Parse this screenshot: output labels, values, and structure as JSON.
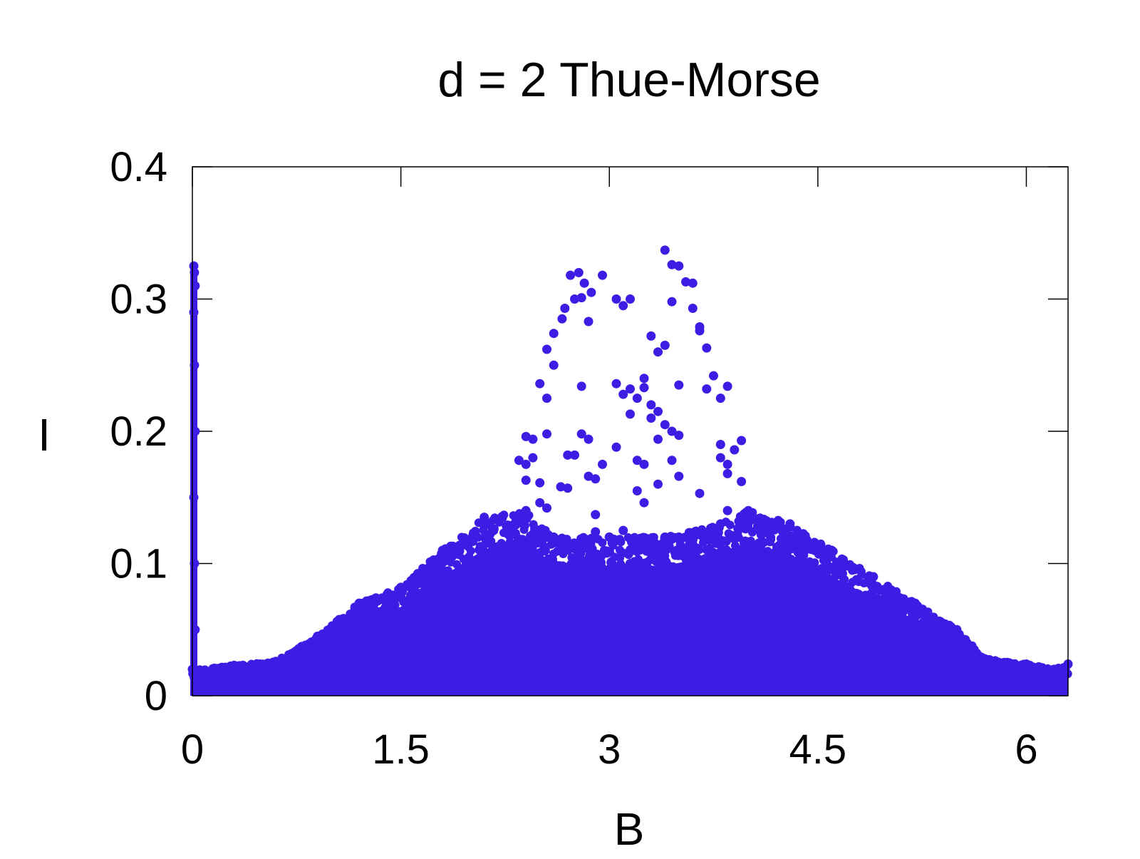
{
  "chart_data": {
    "type": "scatter",
    "title": "d = 2 Thue-Morse",
    "xlabel": "B",
    "ylabel": "I",
    "xlim": [
      0,
      6.3
    ],
    "ylim": [
      0,
      0.4
    ],
    "x_ticks": [
      "0",
      "1.5",
      "3",
      "4.5",
      "6"
    ],
    "x_tick_values": [
      0,
      1.5,
      3,
      4.5,
      6
    ],
    "y_ticks": [
      "0",
      "0.1",
      "0.2",
      "0.3",
      "0.4"
    ],
    "y_tick_values": [
      0,
      0.1,
      0.2,
      0.3,
      0.4
    ],
    "grid": false,
    "legend": "none",
    "marker_color": "#3d1de4",
    "series": [
      {
        "points": [
          [
            0.01,
            0.325
          ],
          [
            0.015,
            0.32
          ],
          [
            0.02,
            0.31
          ],
          [
            0.01,
            0.29
          ],
          [
            0.015,
            0.25
          ],
          [
            0.02,
            0.2
          ],
          [
            0.01,
            0.15
          ],
          [
            0.015,
            0.1
          ],
          [
            0.02,
            0.05
          ],
          [
            0.01,
            0.02
          ],
          [
            2.72,
            0.318
          ],
          [
            2.78,
            0.32
          ],
          [
            2.82,
            0.312
          ],
          [
            2.87,
            0.305
          ],
          [
            2.95,
            0.318
          ],
          [
            2.75,
            0.3
          ],
          [
            2.8,
            0.301
          ],
          [
            2.68,
            0.293
          ],
          [
            2.66,
            0.285
          ],
          [
            2.85,
            0.283
          ],
          [
            2.6,
            0.274
          ],
          [
            2.55,
            0.262
          ],
          [
            2.6,
            0.25
          ],
          [
            3.05,
            0.3
          ],
          [
            3.1,
            0.295
          ],
          [
            3.15,
            0.3
          ],
          [
            3.4,
            0.337
          ],
          [
            3.45,
            0.326
          ],
          [
            3.5,
            0.325
          ],
          [
            3.55,
            0.313
          ],
          [
            3.6,
            0.312
          ],
          [
            3.45,
            0.298
          ],
          [
            3.6,
            0.293
          ],
          [
            3.65,
            0.279
          ],
          [
            3.65,
            0.276
          ],
          [
            3.7,
            0.263
          ],
          [
            3.4,
            0.265
          ],
          [
            3.3,
            0.272
          ],
          [
            3.35,
            0.26
          ],
          [
            3.5,
            0.235
          ],
          [
            3.7,
            0.232
          ],
          [
            3.75,
            0.242
          ],
          [
            3.8,
            0.225
          ],
          [
            3.85,
            0.234
          ],
          [
            2.5,
            0.236
          ],
          [
            2.55,
            0.225
          ],
          [
            2.8,
            0.234
          ],
          [
            3.05,
            0.236
          ],
          [
            3.1,
            0.228
          ],
          [
            3.15,
            0.232
          ],
          [
            3.2,
            0.225
          ],
          [
            3.25,
            0.24
          ],
          [
            3.25,
            0.233
          ],
          [
            3.3,
            0.22
          ],
          [
            3.35,
            0.215
          ],
          [
            3.15,
            0.213
          ],
          [
            3.3,
            0.21
          ],
          [
            3.4,
            0.205
          ],
          [
            3.45,
            0.2
          ],
          [
            3.5,
            0.197
          ],
          [
            2.4,
            0.196
          ],
          [
            2.45,
            0.194
          ],
          [
            2.55,
            0.198
          ],
          [
            2.8,
            0.198
          ],
          [
            2.85,
            0.194
          ],
          [
            3.05,
            0.188
          ],
          [
            3.35,
            0.194
          ],
          [
            3.8,
            0.19
          ],
          [
            3.9,
            0.186
          ],
          [
            3.95,
            0.193
          ],
          [
            2.4,
            0.175
          ],
          [
            2.35,
            0.178
          ],
          [
            2.45,
            0.18
          ],
          [
            2.7,
            0.182
          ],
          [
            2.75,
            0.182
          ],
          [
            2.95,
            0.175
          ],
          [
            3.2,
            0.178
          ],
          [
            3.25,
            0.175
          ],
          [
            3.45,
            0.178
          ],
          [
            3.8,
            0.18
          ],
          [
            3.85,
            0.175
          ],
          [
            2.4,
            0.163
          ],
          [
            2.5,
            0.161
          ],
          [
            2.65,
            0.158
          ],
          [
            2.7,
            0.157
          ],
          [
            2.85,
            0.166
          ],
          [
            2.9,
            0.164
          ],
          [
            3.2,
            0.155
          ],
          [
            3.35,
            0.16
          ],
          [
            3.5,
            0.166
          ],
          [
            3.65,
            0.153
          ],
          [
            3.85,
            0.168
          ],
          [
            3.95,
            0.162
          ],
          [
            2.5,
            0.146
          ],
          [
            2.55,
            0.142
          ],
          [
            2.9,
            0.137
          ],
          [
            3.25,
            0.146
          ],
          [
            3.85,
            0.14
          ],
          [
            2.9,
            0.124
          ],
          [
            3.0,
            0.12
          ],
          [
            3.1,
            0.125
          ],
          [
            3.5,
            0.12
          ],
          [
            3.6,
            0.118
          ],
          [
            3.9,
            0.12
          ]
        ],
        "upper_envelope": [
          [
            0.0,
            0.02
          ],
          [
            0.3,
            0.023
          ],
          [
            0.6,
            0.026
          ],
          [
            0.9,
            0.045
          ],
          [
            1.2,
            0.07
          ],
          [
            1.5,
            0.082
          ],
          [
            1.8,
            0.11
          ],
          [
            2.1,
            0.135
          ],
          [
            2.4,
            0.14
          ],
          [
            2.6,
            0.12
          ],
          [
            3.0,
            0.12
          ],
          [
            3.4,
            0.12
          ],
          [
            3.8,
            0.13
          ],
          [
            4.0,
            0.14
          ],
          [
            4.3,
            0.13
          ],
          [
            4.6,
            0.11
          ],
          [
            4.9,
            0.09
          ],
          [
            5.2,
            0.07
          ],
          [
            5.5,
            0.05
          ],
          [
            5.7,
            0.028
          ],
          [
            6.0,
            0.024
          ],
          [
            6.2,
            0.02
          ],
          [
            6.3,
            0.024
          ]
        ]
      }
    ]
  }
}
